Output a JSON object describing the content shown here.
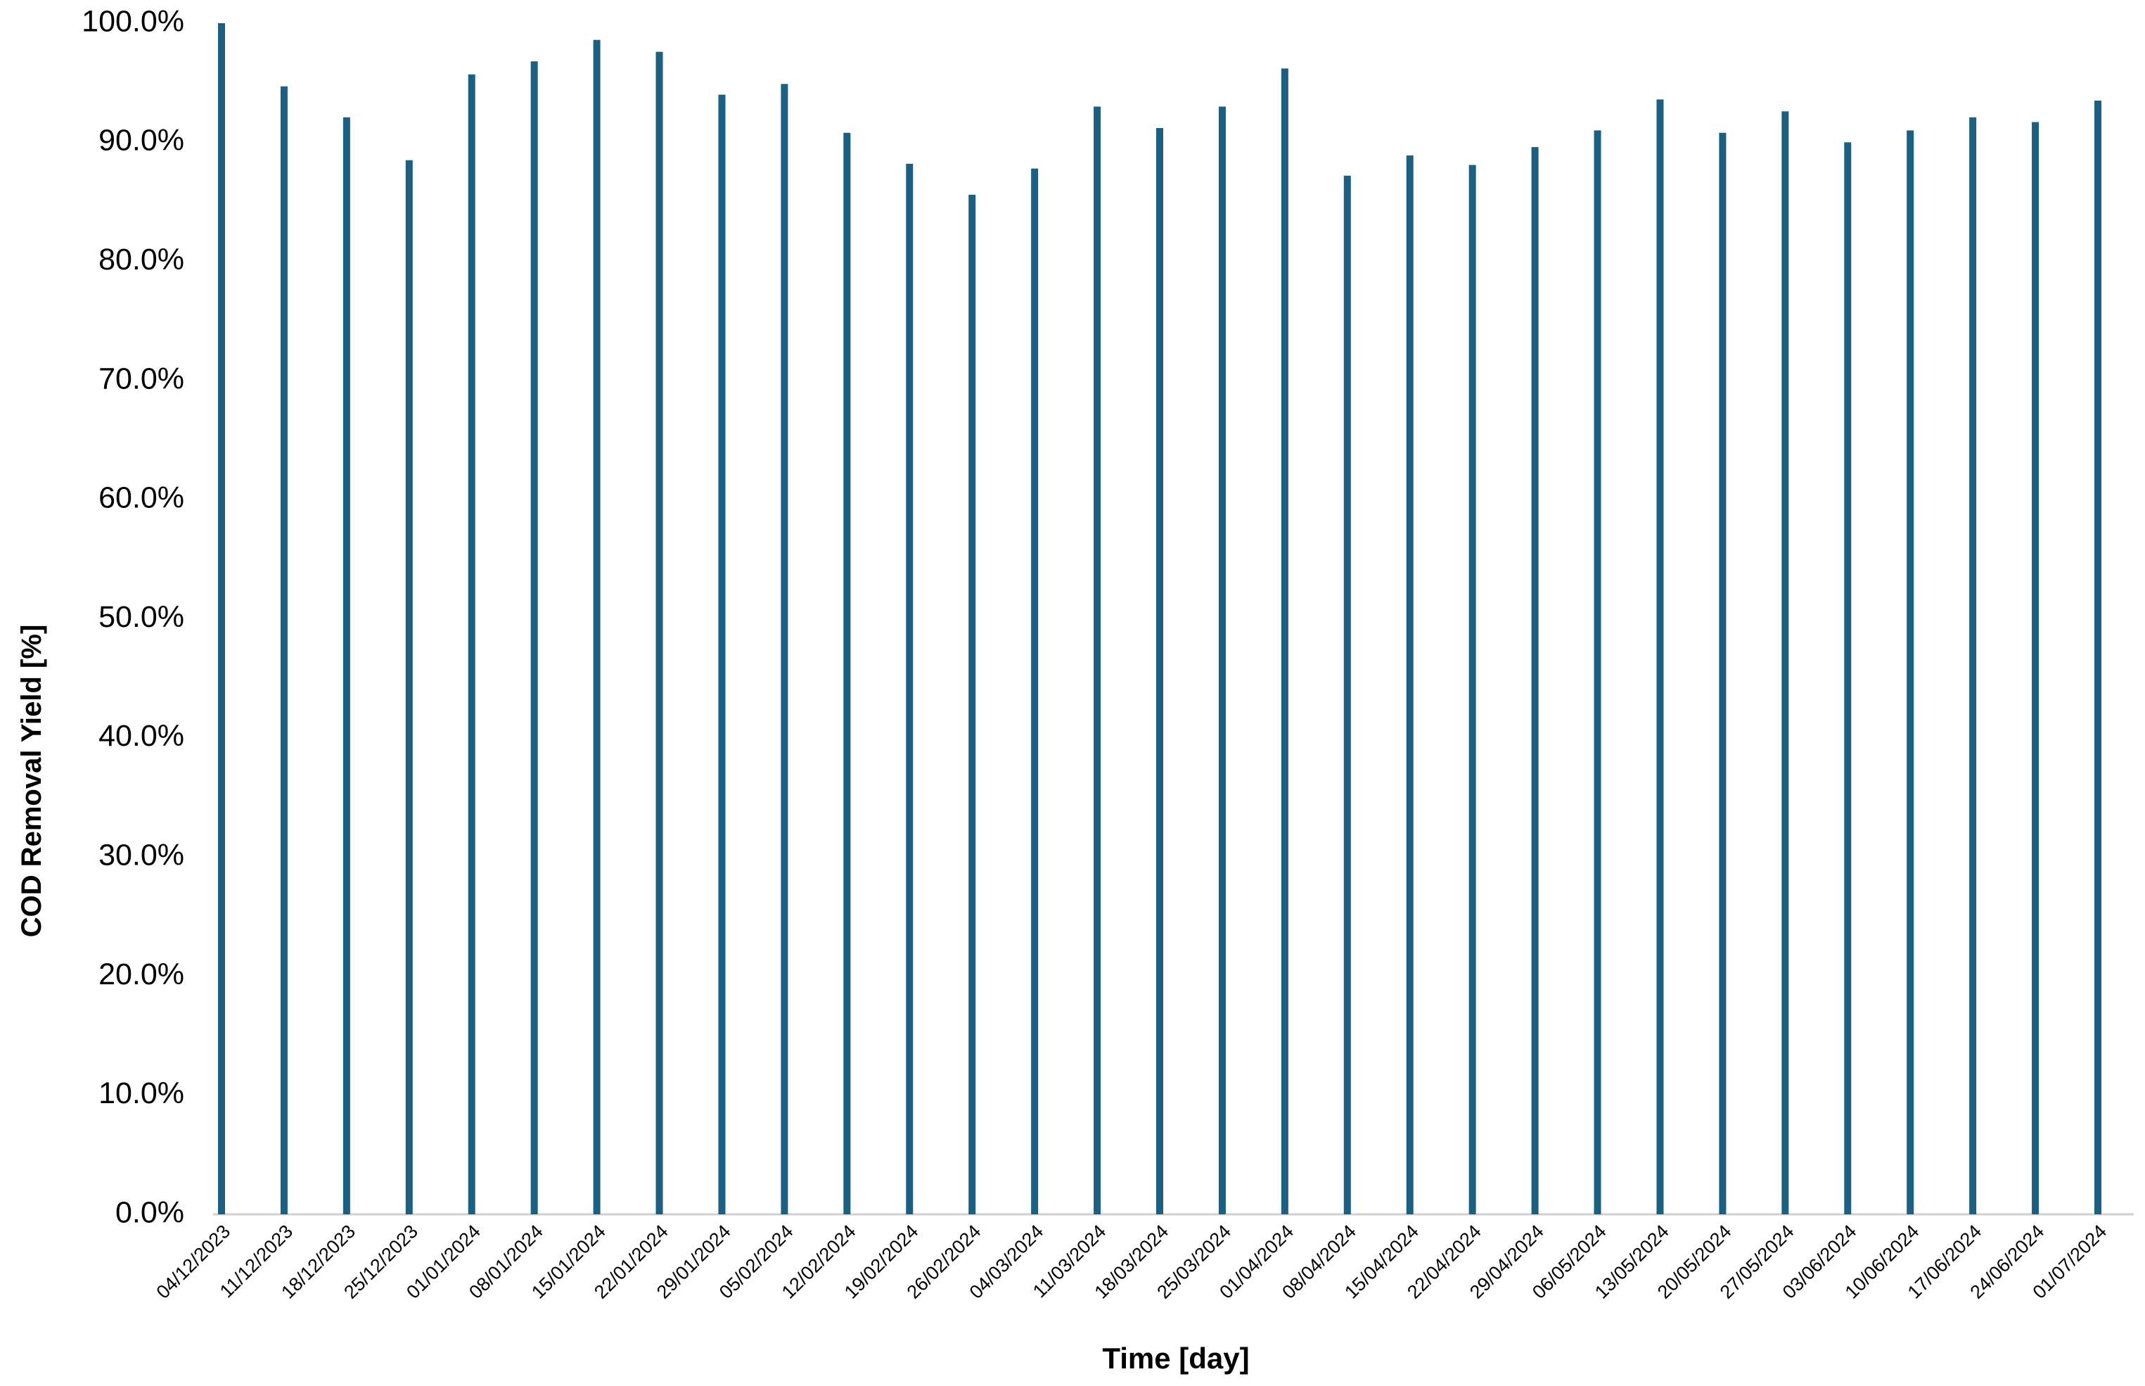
{
  "chart_data": {
    "type": "bar",
    "x_label": "Time [day]",
    "y_label": "COD Removal Yield [%]",
    "categories": [
      "04/12/2023",
      "11/12/2023",
      "18/12/2023",
      "25/12/2023",
      "01/01/2024",
      "08/01/2024",
      "15/01/2024",
      "22/01/2024",
      "29/01/2024",
      "05/02/2024",
      "12/02/2024",
      "19/02/2024",
      "26/02/2024",
      "04/03/2024",
      "11/03/2024",
      "18/03/2024",
      "25/03/2024",
      "01/04/2024",
      "08/04/2024",
      "15/04/2024",
      "22/04/2024",
      "29/04/2024",
      "06/05/2024",
      "13/05/2024",
      "20/05/2024",
      "27/05/2024",
      "03/06/2024",
      "10/06/2024",
      "17/06/2024",
      "24/06/2024",
      "01/07/2024"
    ],
    "values": [
      100.0,
      94.7,
      92.1,
      88.5,
      95.7,
      96.8,
      98.6,
      97.6,
      94.0,
      94.9,
      90.8,
      88.2,
      85.6,
      87.8,
      93.0,
      91.2,
      93.0,
      96.2,
      87.2,
      88.9,
      88.1,
      89.6,
      91.0,
      93.6,
      90.8,
      92.6,
      90.0,
      91.0,
      92.1,
      91.7,
      93.5
    ],
    "color": "#1b6082",
    "ylim": [
      0,
      100
    ],
    "yticks": [
      {
        "value": 0,
        "label": "0.0%"
      },
      {
        "value": 10,
        "label": "10.0%"
      },
      {
        "value": 20,
        "label": "20.0%"
      },
      {
        "value": 30,
        "label": "30.0%"
      },
      {
        "value": 40,
        "label": "40.0%"
      },
      {
        "value": 50,
        "label": "50.0%"
      },
      {
        "value": 60,
        "label": "60.0%"
      },
      {
        "value": 70,
        "label": "70.0%"
      },
      {
        "value": 80,
        "label": "80.0%"
      },
      {
        "value": 90,
        "label": "90.0%"
      },
      {
        "value": 100,
        "label": "100.0%"
      }
    ],
    "grid": false
  }
}
